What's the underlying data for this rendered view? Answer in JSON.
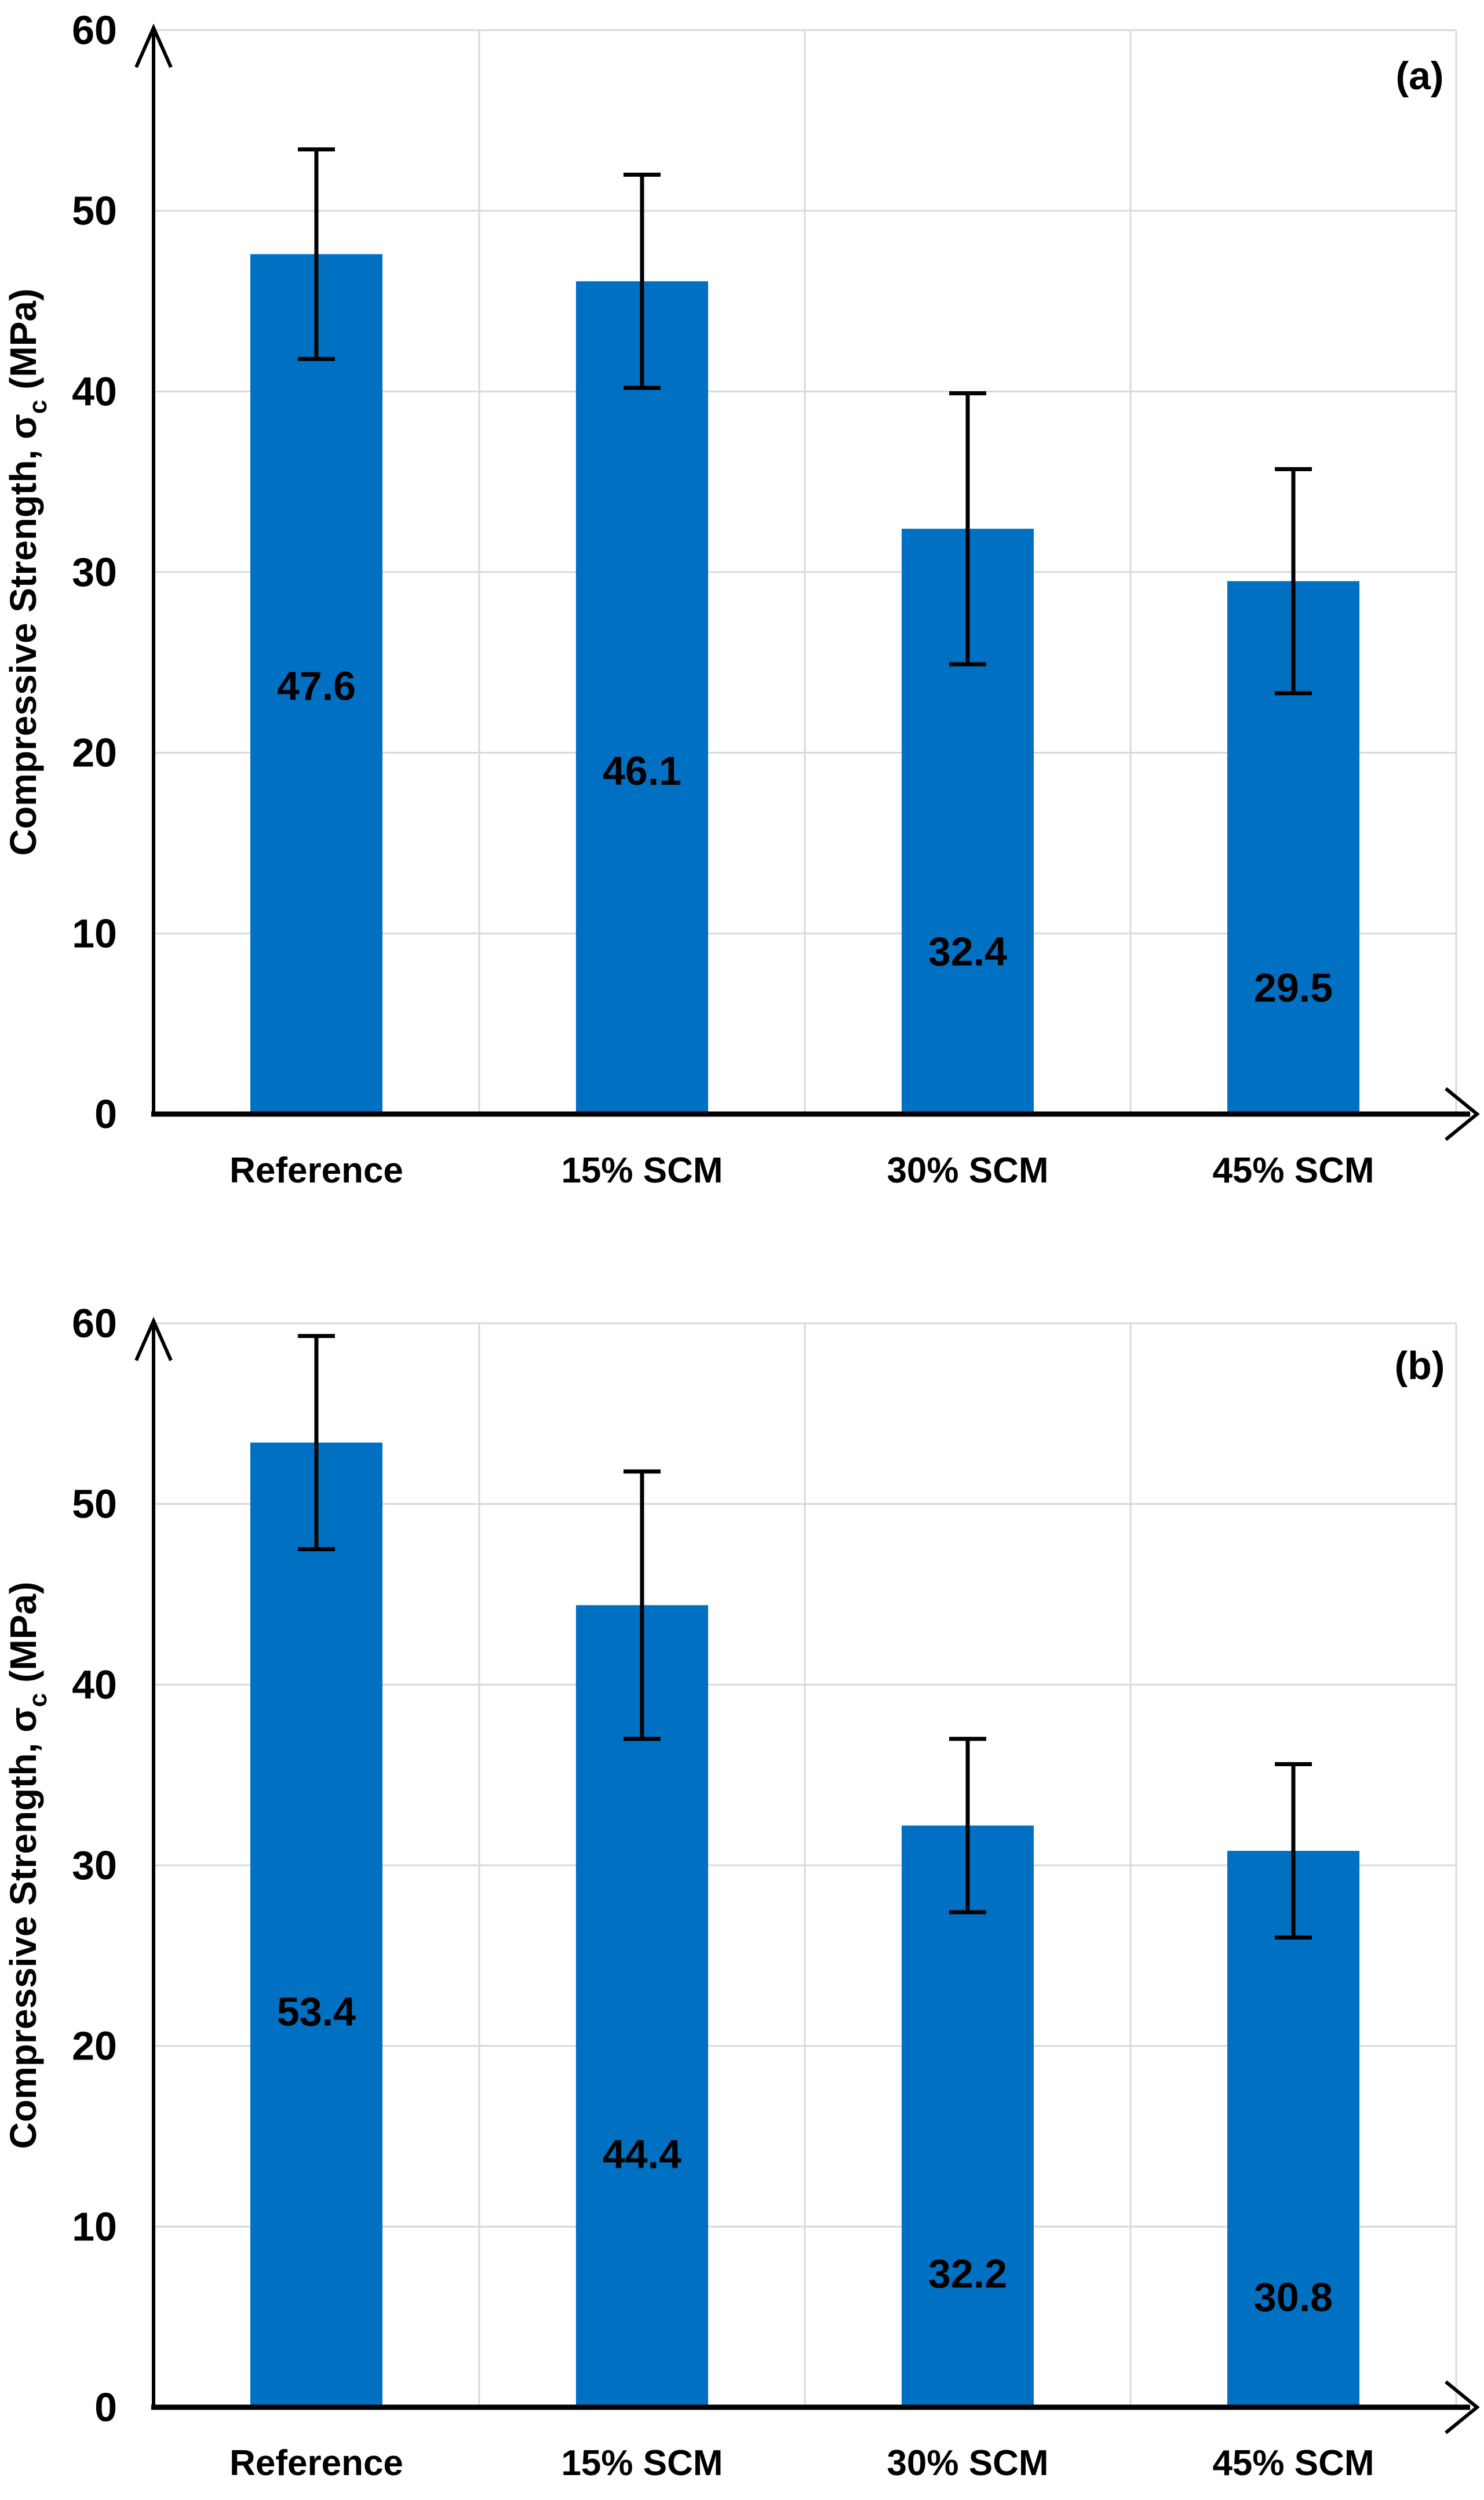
{
  "figure": {
    "background_color": "#FFFFFF",
    "bar_color": "#0071C2",
    "grid_color": "#D9D9D9",
    "axis_color": "#000000",
    "text_color": "#000000",
    "y_axis_title": {
      "main": "Compressive Strength, σ",
      "subscript": "c",
      "unit": " (MPa)",
      "full": "Compressive Strength, σc (MPa)"
    }
  },
  "chart_data": [
    {
      "type": "bar",
      "panel_label": "(a)",
      "title": "",
      "xlabel": "",
      "ylabel": "Compressive Strength, σc (MPa)",
      "categories": [
        "Reference",
        "15% SCM",
        "30% SCM",
        "45% SCM"
      ],
      "values": [
        47.6,
        46.1,
        32.4,
        29.5
      ],
      "error_bars_plus_minus": [
        5.8,
        5.9,
        7.5,
        6.2
      ],
      "value_labels": [
        "47.6",
        "46.1",
        "32.4",
        "29.5"
      ],
      "yticks": [
        0,
        10,
        20,
        30,
        40,
        50,
        60
      ],
      "ylim": [
        0,
        60
      ],
      "grid": true,
      "legend_position": "none",
      "value_label_height_mpa": [
        23.7,
        19.0,
        9.0,
        7.0
      ]
    },
    {
      "type": "bar",
      "panel_label": "(b)",
      "title": "",
      "xlabel": "",
      "ylabel": "Compressive Strength, σc (MPa)",
      "categories": [
        "Reference",
        "15% SCM",
        "30% SCM",
        "45% SCM"
      ],
      "values": [
        53.4,
        44.4,
        32.2,
        30.8
      ],
      "error_bars_plus_minus": [
        5.9,
        7.4,
        4.8,
        4.8
      ],
      "value_labels": [
        "53.4",
        "44.4",
        "32.2",
        "30.8"
      ],
      "yticks": [
        0,
        10,
        20,
        30,
        40,
        50,
        60
      ],
      "ylim": [
        0,
        60
      ],
      "grid": true,
      "legend_position": "none",
      "value_label_height_mpa": [
        21.9,
        14.0,
        7.4,
        6.1
      ]
    }
  ]
}
